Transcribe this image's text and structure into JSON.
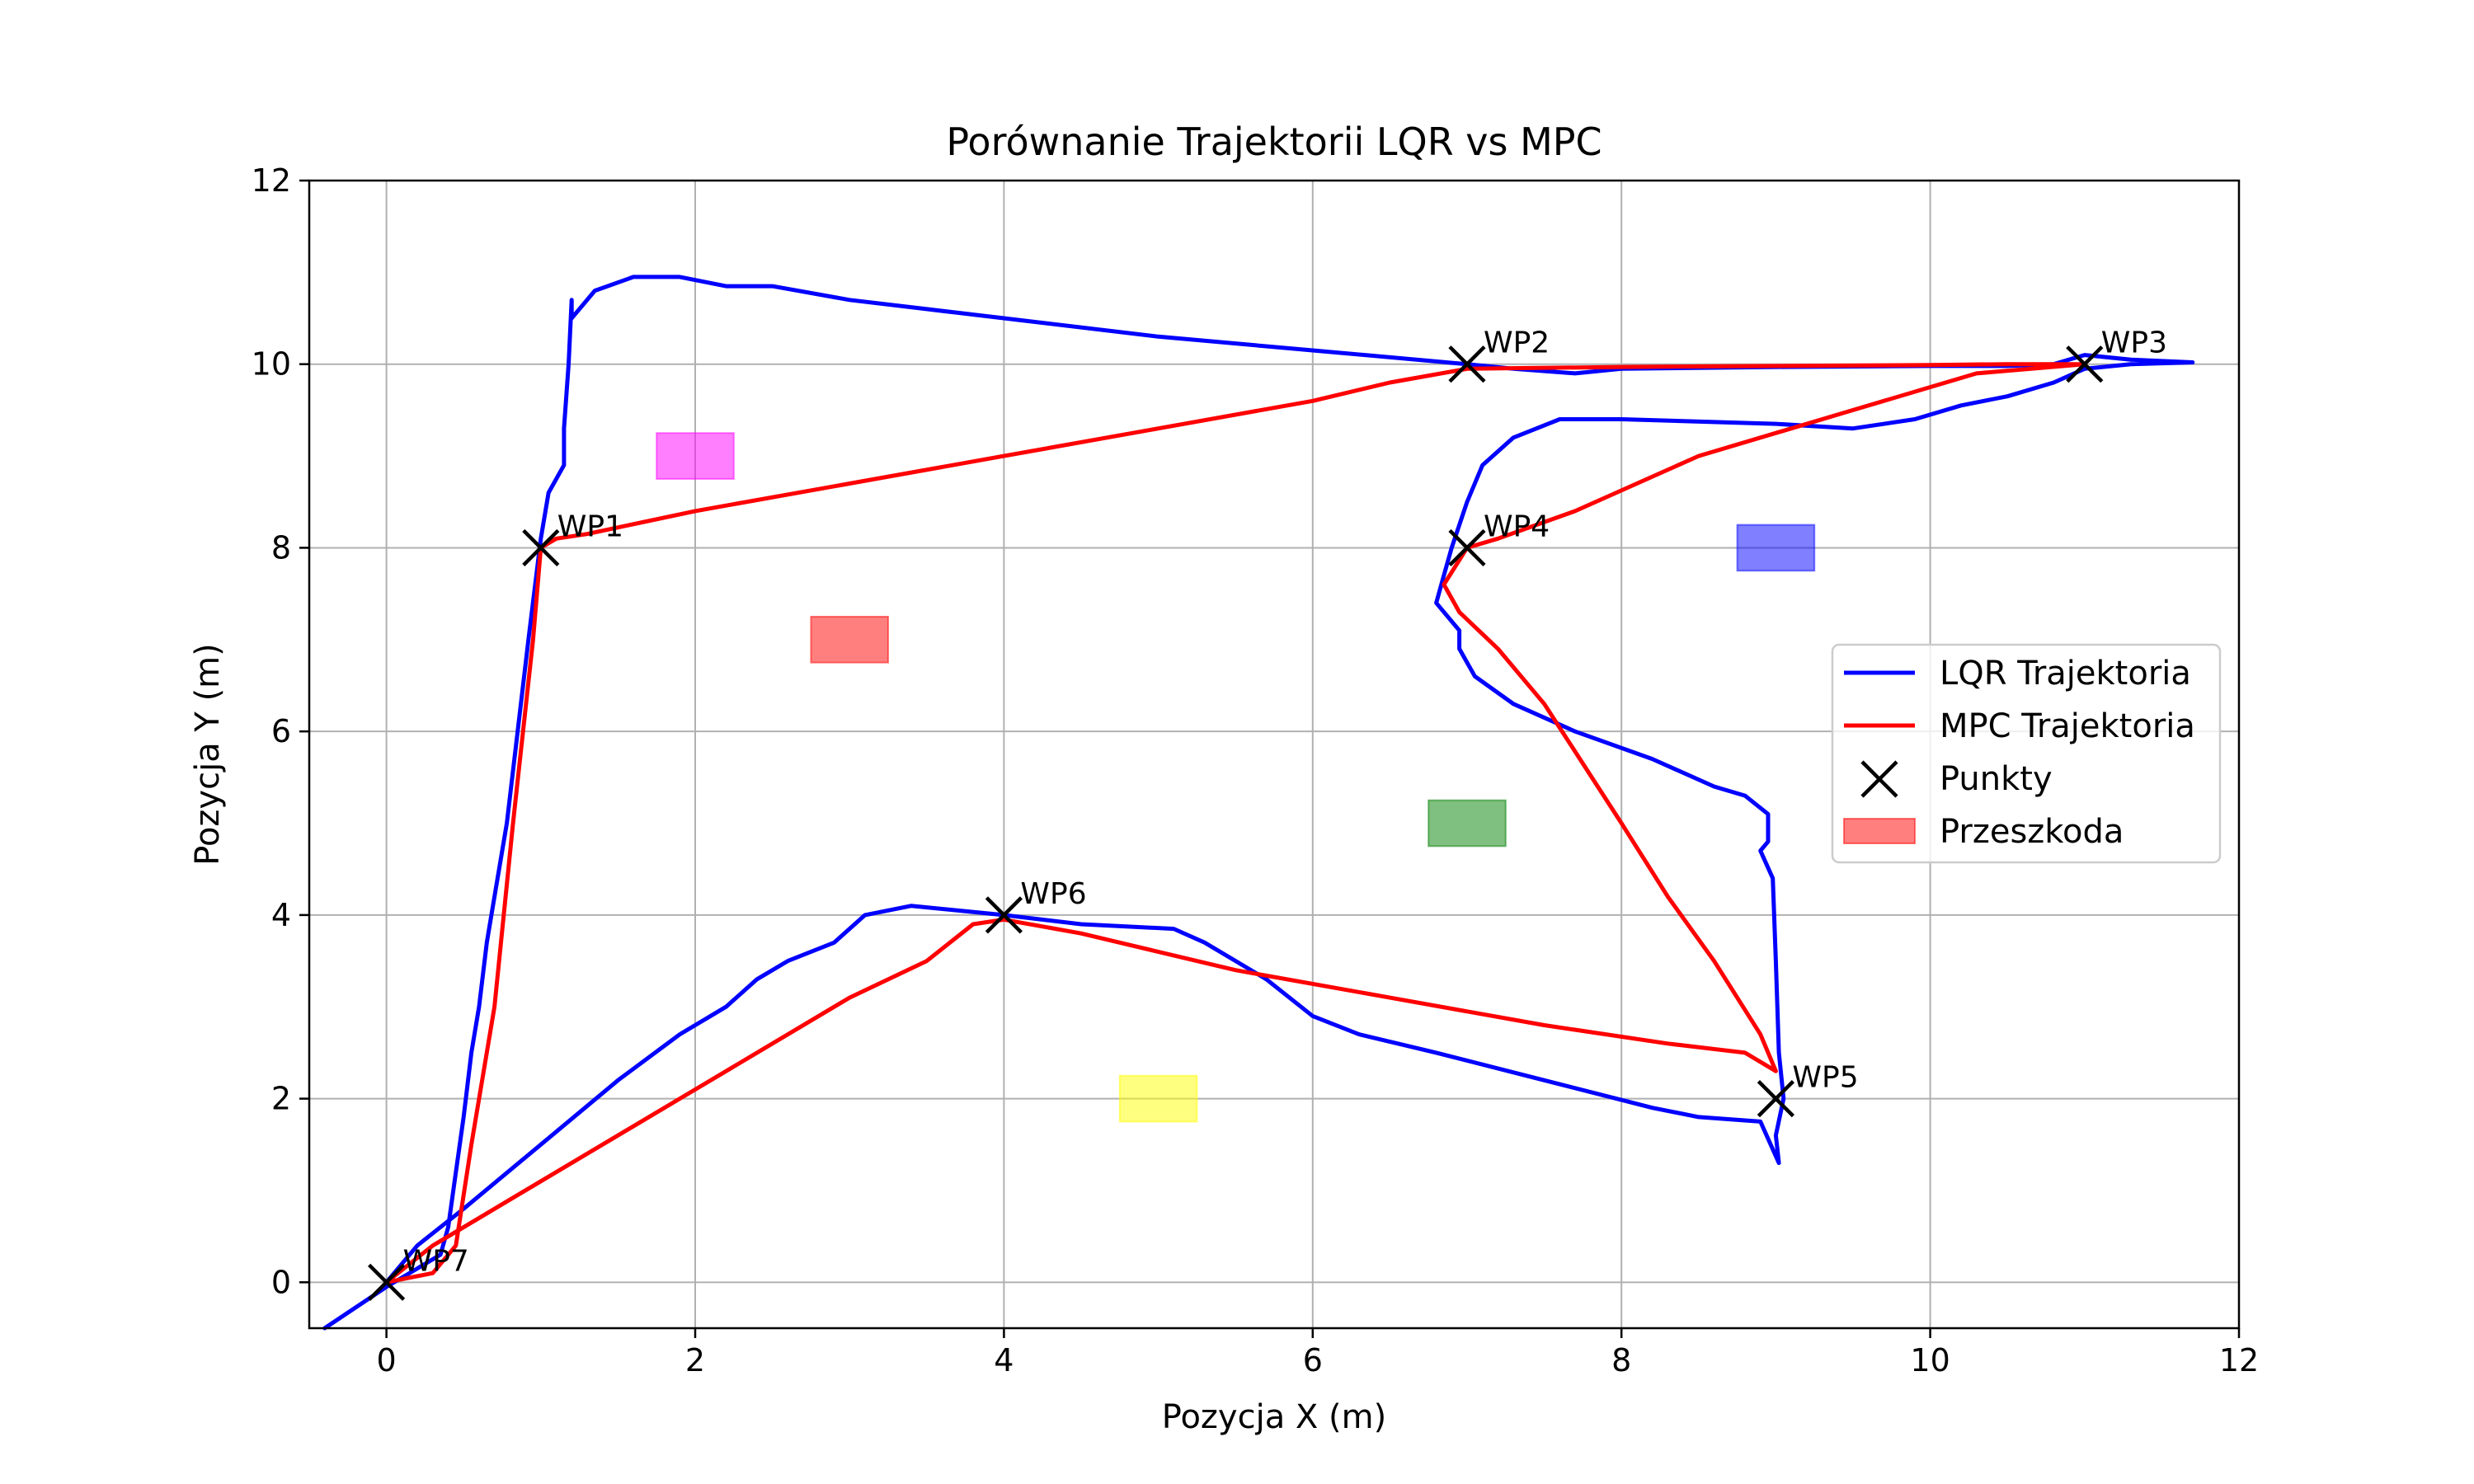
{
  "chart_data": {
    "type": "line",
    "title": "Porównanie Trajektorii LQR vs MPC",
    "xlabel": "Pozycja X (m)",
    "ylabel": "Pozycja Y (m)",
    "xlim": [
      -0.5,
      12
    ],
    "ylim": [
      -0.5,
      12
    ],
    "xticks": [
      0,
      2,
      4,
      6,
      8,
      10,
      12
    ],
    "yticks": [
      0,
      2,
      4,
      6,
      8,
      10,
      12
    ],
    "grid": true,
    "legend_position": "center-right",
    "series": [
      {
        "name": "LQR Trajektoria",
        "color": "#0000ff",
        "points": [
          [
            -0.4,
            -0.5
          ],
          [
            0,
            -0.05
          ],
          [
            0.2,
            0.15
          ],
          [
            0.35,
            0.3
          ],
          [
            0.4,
            0.6
          ],
          [
            0.45,
            1.2
          ],
          [
            0.5,
            1.8
          ],
          [
            0.55,
            2.5
          ],
          [
            0.6,
            3.0
          ],
          [
            0.65,
            3.7
          ],
          [
            0.7,
            4.2
          ],
          [
            0.78,
            5.0
          ],
          [
            0.85,
            6.0
          ],
          [
            0.92,
            7.0
          ],
          [
            1.0,
            8.1
          ],
          [
            1.05,
            8.6
          ],
          [
            1.15,
            8.9
          ],
          [
            1.15,
            9.3
          ],
          [
            1.18,
            10.0
          ],
          [
            1.2,
            10.7
          ],
          [
            1.2,
            10.5
          ],
          [
            1.35,
            10.8
          ],
          [
            1.6,
            10.95
          ],
          [
            1.9,
            10.95
          ],
          [
            2.2,
            10.85
          ],
          [
            2.5,
            10.85
          ],
          [
            3.0,
            10.7
          ],
          [
            3.5,
            10.6
          ],
          [
            4.0,
            10.5
          ],
          [
            5.0,
            10.3
          ],
          [
            6.0,
            10.15
          ],
          [
            7.0,
            10.0
          ],
          [
            7.3,
            9.95
          ],
          [
            7.7,
            9.9
          ],
          [
            8.0,
            9.95
          ],
          [
            9.0,
            9.97
          ],
          [
            10.0,
            9.98
          ],
          [
            10.5,
            9.98
          ],
          [
            10.8,
            10.0
          ],
          [
            11.0,
            10.1
          ],
          [
            11.3,
            10.05
          ],
          [
            11.7,
            10.02
          ],
          [
            11.3,
            10.0
          ],
          [
            11.0,
            9.95
          ],
          [
            10.8,
            9.8
          ],
          [
            10.5,
            9.65
          ],
          [
            10.2,
            9.55
          ],
          [
            9.9,
            9.4
          ],
          [
            9.5,
            9.3
          ],
          [
            9.0,
            9.35
          ],
          [
            8.0,
            9.4
          ],
          [
            7.6,
            9.4
          ],
          [
            7.3,
            9.2
          ],
          [
            7.1,
            8.9
          ],
          [
            7.0,
            8.5
          ],
          [
            6.9,
            8.0
          ],
          [
            6.85,
            7.7
          ],
          [
            6.8,
            7.4
          ],
          [
            6.95,
            7.1
          ],
          [
            6.95,
            6.9
          ],
          [
            7.05,
            6.6
          ],
          [
            7.3,
            6.3
          ],
          [
            7.7,
            6.0
          ],
          [
            8.2,
            5.7
          ],
          [
            8.6,
            5.4
          ],
          [
            8.8,
            5.3
          ],
          [
            8.95,
            5.1
          ],
          [
            8.95,
            4.8
          ],
          [
            8.9,
            4.7
          ],
          [
            8.98,
            4.4
          ],
          [
            9.0,
            3.5
          ],
          [
            9.02,
            2.5
          ],
          [
            9.05,
            2.0
          ],
          [
            9.0,
            1.6
          ],
          [
            9.02,
            1.3
          ],
          [
            8.9,
            1.75
          ],
          [
            8.5,
            1.8
          ],
          [
            8.2,
            1.9
          ],
          [
            7.5,
            2.2
          ],
          [
            6.8,
            2.5
          ],
          [
            6.3,
            2.7
          ],
          [
            6.0,
            2.9
          ],
          [
            5.7,
            3.3
          ],
          [
            5.3,
            3.7
          ],
          [
            5.1,
            3.85
          ],
          [
            4.5,
            3.9
          ],
          [
            4.0,
            4.0
          ],
          [
            3.4,
            4.1
          ],
          [
            3.1,
            4.0
          ],
          [
            2.9,
            3.7
          ],
          [
            2.6,
            3.5
          ],
          [
            2.4,
            3.3
          ],
          [
            2.2,
            3.0
          ],
          [
            1.9,
            2.7
          ],
          [
            1.5,
            2.2
          ],
          [
            1.0,
            1.5
          ],
          [
            0.5,
            0.8
          ],
          [
            0.2,
            0.4
          ],
          [
            0,
            0
          ]
        ]
      },
      {
        "name": "MPC Trajektoria",
        "color": "#ff0000",
        "points": [
          [
            0,
            0
          ],
          [
            0.3,
            0.1
          ],
          [
            0.45,
            0.4
          ],
          [
            0.55,
            1.5
          ],
          [
            0.7,
            3.0
          ],
          [
            0.82,
            5.0
          ],
          [
            0.95,
            7.0
          ],
          [
            1.0,
            8.0
          ],
          [
            1.1,
            8.1
          ],
          [
            1.3,
            8.15
          ],
          [
            2.0,
            8.4
          ],
          [
            3.0,
            8.7
          ],
          [
            4.0,
            9.0
          ],
          [
            5.0,
            9.3
          ],
          [
            6.0,
            9.6
          ],
          [
            6.5,
            9.8
          ],
          [
            7.0,
            9.95
          ],
          [
            8.0,
            9.97
          ],
          [
            9.0,
            9.98
          ],
          [
            10.0,
            9.99
          ],
          [
            10.5,
            10.0
          ],
          [
            11.0,
            10.0
          ],
          [
            10.3,
            9.9
          ],
          [
            9.5,
            9.5
          ],
          [
            8.5,
            9.0
          ],
          [
            7.7,
            8.4
          ],
          [
            7.2,
            8.1
          ],
          [
            7.0,
            8.0
          ],
          [
            6.85,
            7.6
          ],
          [
            6.95,
            7.3
          ],
          [
            7.2,
            6.9
          ],
          [
            7.5,
            6.3
          ],
          [
            8.0,
            5.0
          ],
          [
            8.3,
            4.2
          ],
          [
            8.6,
            3.5
          ],
          [
            8.9,
            2.7
          ],
          [
            9.0,
            2.3
          ],
          [
            8.8,
            2.5
          ],
          [
            8.3,
            2.6
          ],
          [
            7.5,
            2.8
          ],
          [
            6.5,
            3.1
          ],
          [
            5.5,
            3.4
          ],
          [
            4.5,
            3.8
          ],
          [
            4.0,
            3.95
          ],
          [
            3.8,
            3.9
          ],
          [
            3.5,
            3.5
          ],
          [
            3.0,
            3.1
          ],
          [
            2.0,
            2.1
          ],
          [
            1.0,
            1.1
          ],
          [
            0.3,
            0.4
          ],
          [
            0,
            0
          ]
        ]
      }
    ],
    "waypoints": {
      "name": "Punkty",
      "color": "#000000",
      "points": [
        {
          "label": "WP1",
          "x": 1,
          "y": 8
        },
        {
          "label": "WP2",
          "x": 7,
          "y": 10
        },
        {
          "label": "WP3",
          "x": 11,
          "y": 10
        },
        {
          "label": "WP4",
          "x": 7,
          "y": 8
        },
        {
          "label": "WP5",
          "x": 9,
          "y": 2
        },
        {
          "label": "WP6",
          "x": 4,
          "y": 4
        },
        {
          "label": "WP7",
          "x": 0,
          "y": 0
        }
      ]
    },
    "obstacles": {
      "name": "Przeszkoda",
      "items": [
        {
          "x": [
            1.75,
            2.25
          ],
          "y": [
            8.75,
            9.25
          ],
          "color": "#ff00ff"
        },
        {
          "x": [
            2.75,
            3.25
          ],
          "y": [
            6.75,
            7.25
          ],
          "color": "#ff0000"
        },
        {
          "x": [
            6.75,
            7.25
          ],
          "y": [
            4.75,
            5.25
          ],
          "color": "#008000"
        },
        {
          "x": [
            8.75,
            9.25
          ],
          "y": [
            7.75,
            8.25
          ],
          "color": "#0000ff"
        },
        {
          "x": [
            4.75,
            5.25
          ],
          "y": [
            1.75,
            2.25
          ],
          "color": "#ffff00"
        }
      ]
    }
  }
}
